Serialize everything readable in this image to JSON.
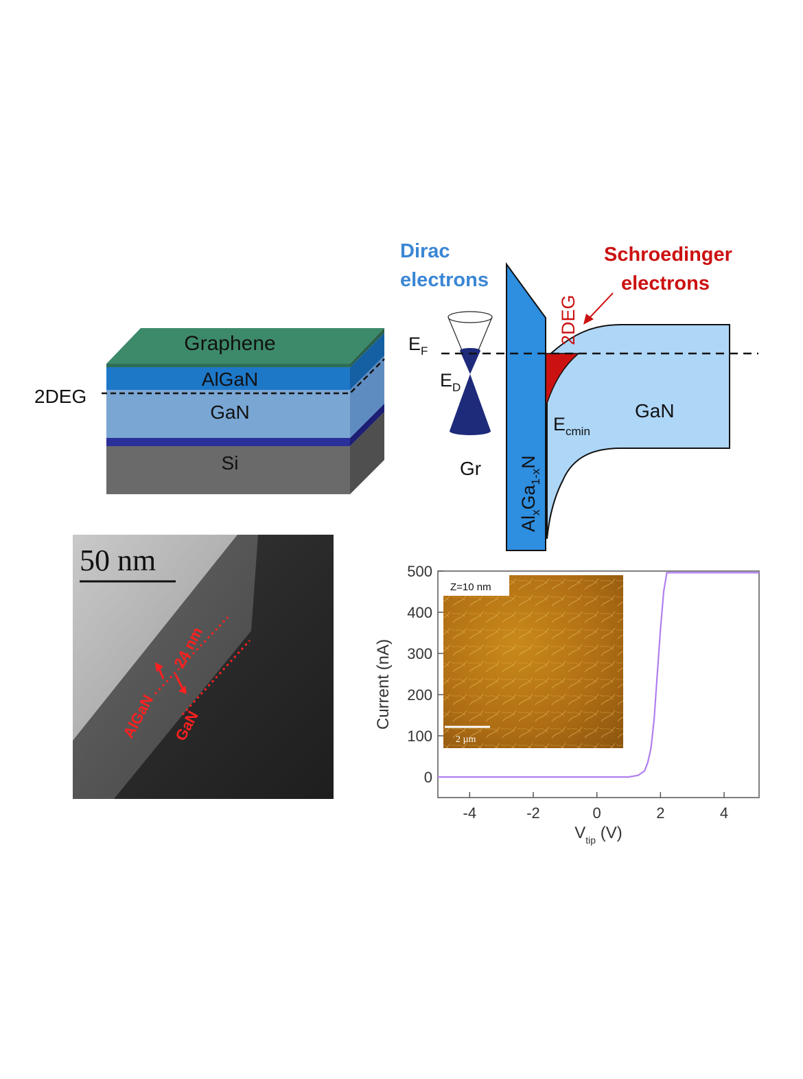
{
  "stack": {
    "layers": [
      {
        "label": "Graphene",
        "color": "#3d8a6a"
      },
      {
        "label": "AlGaN",
        "color": "#1e78c8"
      },
      {
        "label": "GaN",
        "color": "#7aa6d4"
      },
      {
        "label": "Si",
        "color": "#6a6a6a"
      }
    ],
    "interlayer_color": "#2b2f9a",
    "deg_label": "2DEG"
  },
  "band": {
    "dirac_label_line1": "Dirac",
    "dirac_label_line2": "electrons",
    "schro_label_line1": "Schroedinger",
    "schro_label_line2": "electrons",
    "deg_label": "2DEG",
    "ef_main": "E",
    "ef_sub": "F",
    "ed_main": "E",
    "ed_sub": "D",
    "ecmin_main": "E",
    "ecmin_sub": "cmin",
    "gan_label": "GaN",
    "gr_label": "Gr",
    "barrier_al": "Al",
    "barrier_x": "x",
    "barrier_ga": "Ga",
    "barrier_sub": "1-x",
    "barrier_n": "N",
    "colors": {
      "dirac": "#3a86d4",
      "schro": "#cc1111",
      "barrier": "#2e8ee0",
      "gan": "#aed6f7",
      "cone": "#1e2a7a"
    }
  },
  "tem": {
    "scale_label": "50 nm",
    "thickness_label": "24 nm",
    "algan_label": "AlGaN",
    "gan_label": "GaN"
  },
  "chart_data": {
    "type": "line",
    "xlabel_main": "V",
    "xlabel_sub": "tip",
    "xlabel_unit": " (V)",
    "ylabel": "Current (nA)",
    "xlim": [
      -5,
      5.1
    ],
    "ylim": [
      -50,
      500
    ],
    "xticks": [
      -4,
      -2,
      0,
      2,
      4
    ],
    "yticks": [
      0,
      100,
      200,
      300,
      400,
      500
    ],
    "series": [
      {
        "color": "#b07ef0",
        "x": [
          -5,
          0,
          1.0,
          1.3,
          1.5,
          1.6,
          1.7,
          1.8,
          1.9,
          2.0,
          2.1,
          2.2,
          3.0,
          4.0,
          5.1
        ],
        "y": [
          0,
          0,
          0,
          4,
          15,
          35,
          70,
          140,
          250,
          360,
          450,
          496,
          496,
          496,
          496
        ]
      }
    ],
    "inset": {
      "z_label": "Z=10 nm",
      "scale_label": "2 µm"
    }
  }
}
